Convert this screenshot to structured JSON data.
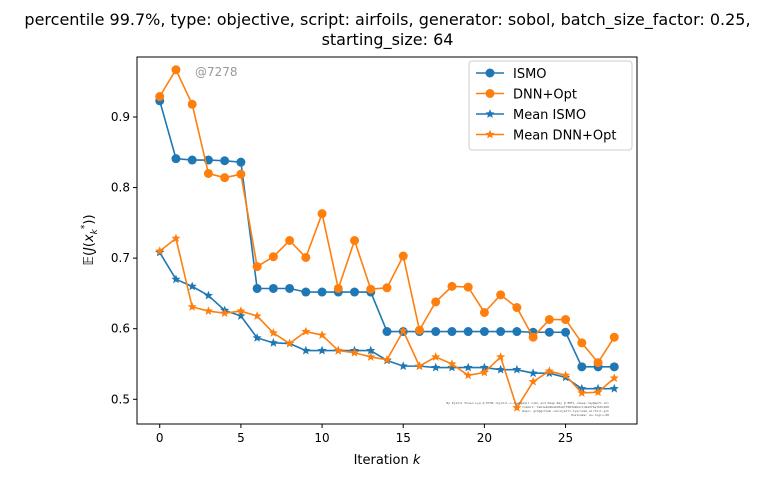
{
  "chart_data": {
    "type": "line",
    "title_line1": "percentile 99.7%, type: objective, script: airfoils, generator: sobol, batch_size_factor: 0.25,",
    "title_line2": "starting_size: 64",
    "xlabel_main": "Iteration ",
    "xlabel_var": "k",
    "ylabel": "𝔼(J(x_k^*))",
    "xlim": [
      -1.4,
      29.4
    ],
    "ylim": [
      0.465,
      0.985
    ],
    "xticks": [
      0,
      5,
      10,
      15,
      20,
      25
    ],
    "yticks": [
      0.5,
      0.6,
      0.7,
      0.8,
      0.9
    ],
    "xtick_labels": [
      "0",
      "5",
      "10",
      "15",
      "20",
      "25"
    ],
    "ytick_labels": [
      "0.5",
      "0.6",
      "0.7",
      "0.8",
      "0.9"
    ],
    "watermark": "@7278",
    "credit_lines": [
      "By Kjetil Olsen Lye @ ETHZ <kjetil.o.lye@gmail.com> and Deep Ray @ EPFL <deep.ray@epfl.ch>",
      "Commit: 7ab1e6d2ba4d5e6f7083a9b2c1d4e5f6a7b8c9d0",
      "Repo: git@github.com:kjetil-lye/ismo_airfoil.git",
      "Hostname: eu-login-08"
    ],
    "legend_position": "upper right",
    "series": [
      {
        "name": "ISMO",
        "marker": "circle",
        "color": "#1f77b4",
        "x": [
          0,
          1,
          2,
          3,
          4,
          5,
          6,
          7,
          8,
          9,
          10,
          11,
          12,
          13,
          14,
          15,
          16,
          17,
          18,
          19,
          20,
          21,
          22,
          23,
          24,
          25,
          26,
          27,
          28
        ],
        "values": [
          0.923,
          0.841,
          0.839,
          0.839,
          0.838,
          0.836,
          0.657,
          0.657,
          0.657,
          0.652,
          0.652,
          0.652,
          0.652,
          0.652,
          0.596,
          0.596,
          0.596,
          0.596,
          0.596,
          0.596,
          0.596,
          0.596,
          0.596,
          0.595,
          0.595,
          0.595,
          0.546,
          0.546,
          0.546
        ]
      },
      {
        "name": "DNN+Opt",
        "marker": "circle",
        "color": "#ff7f0e",
        "x": [
          0,
          1,
          2,
          3,
          4,
          5,
          6,
          7,
          8,
          9,
          10,
          11,
          12,
          13,
          14,
          15,
          16,
          17,
          18,
          19,
          20,
          21,
          22,
          23,
          24,
          25,
          26,
          27,
          28
        ],
        "values": [
          0.929,
          0.967,
          0.918,
          0.82,
          0.814,
          0.819,
          0.688,
          0.702,
          0.725,
          0.701,
          0.763,
          0.657,
          0.725,
          0.656,
          0.658,
          0.703,
          0.598,
          0.638,
          0.66,
          0.659,
          0.623,
          0.648,
          0.63,
          0.588,
          0.613,
          0.613,
          0.58,
          0.552,
          0.588
        ]
      },
      {
        "name": "Mean ISMO",
        "marker": "star",
        "color": "#1f77b4",
        "x": [
          0,
          1,
          2,
          3,
          4,
          5,
          6,
          7,
          8,
          9,
          10,
          11,
          12,
          13,
          14,
          15,
          16,
          17,
          18,
          19,
          20,
          21,
          22,
          23,
          24,
          25,
          26,
          27,
          28
        ],
        "values": [
          0.708,
          0.67,
          0.66,
          0.647,
          0.626,
          0.618,
          0.587,
          0.58,
          0.579,
          0.569,
          0.569,
          0.569,
          0.569,
          0.569,
          0.555,
          0.547,
          0.547,
          0.545,
          0.545,
          0.545,
          0.545,
          0.542,
          0.542,
          0.537,
          0.537,
          0.531,
          0.515,
          0.515,
          0.515
        ]
      },
      {
        "name": "Mean DNN+Opt",
        "marker": "star",
        "color": "#ff7f0e",
        "x": [
          0,
          1,
          2,
          3,
          4,
          5,
          6,
          7,
          8,
          9,
          10,
          11,
          12,
          13,
          14,
          15,
          16,
          17,
          18,
          19,
          20,
          21,
          22,
          23,
          24,
          25,
          26,
          27,
          28
        ],
        "values": [
          0.71,
          0.728,
          0.631,
          0.625,
          0.622,
          0.625,
          0.618,
          0.594,
          0.579,
          0.596,
          0.591,
          0.569,
          0.566,
          0.56,
          0.556,
          0.597,
          0.547,
          0.56,
          0.55,
          0.534,
          0.538,
          0.56,
          0.488,
          0.525,
          0.54,
          0.534,
          0.509,
          0.51,
          0.53
        ]
      }
    ]
  }
}
